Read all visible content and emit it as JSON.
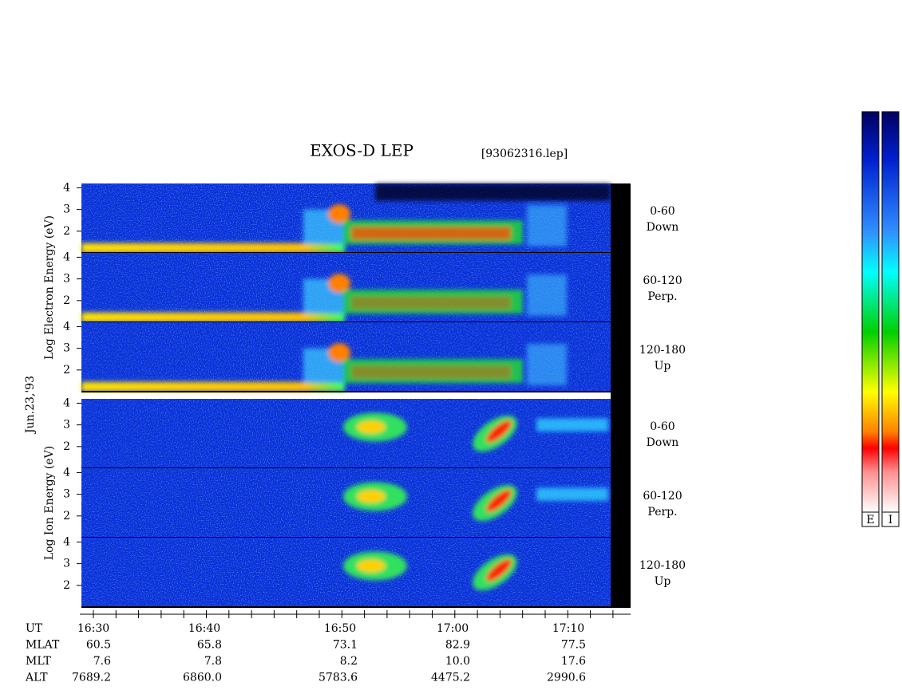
{
  "chart_data": {
    "type": "spectrogram",
    "title": "EXOS-D LEP",
    "file": "[93062316.lep]",
    "date": "Jun.23,'93",
    "ylim": [
      1,
      4.2
    ],
    "yticks": [
      2,
      3,
      4
    ],
    "groups": [
      {
        "ylabel": "Log Electron Energy (eV)",
        "panels": [
          {
            "angle": "0-60",
            "direction": "Down"
          },
          {
            "angle": "60-120",
            "direction": "Perp."
          },
          {
            "angle": "120-180",
            "direction": "Up"
          }
        ]
      },
      {
        "ylabel": "Log Ion Energy (eV)",
        "panels": [
          {
            "angle": "0-60",
            "direction": "Down"
          },
          {
            "angle": "60-120",
            "direction": "Perp."
          },
          {
            "angle": "120-180",
            "direction": "Up"
          }
        ]
      }
    ],
    "colorbar_labels": [
      "E",
      "I"
    ],
    "ephemeris": [
      {
        "name": "UT",
        "values": [
          "16:30",
          "16:40",
          "16:50",
          "17:00",
          "17:10"
        ]
      },
      {
        "name": "MLAT",
        "values": [
          "60.5",
          "65.8",
          "73.1",
          "82.9",
          "77.5"
        ]
      },
      {
        "name": "MLT",
        "values": [
          "7.6",
          "7.8",
          "8.2",
          "10.0",
          "17.6"
        ]
      },
      {
        "name": "ALT",
        "values": [
          "7689.2",
          "6860.0",
          "5783.6",
          "4475.2",
          "2990.6"
        ]
      }
    ]
  }
}
